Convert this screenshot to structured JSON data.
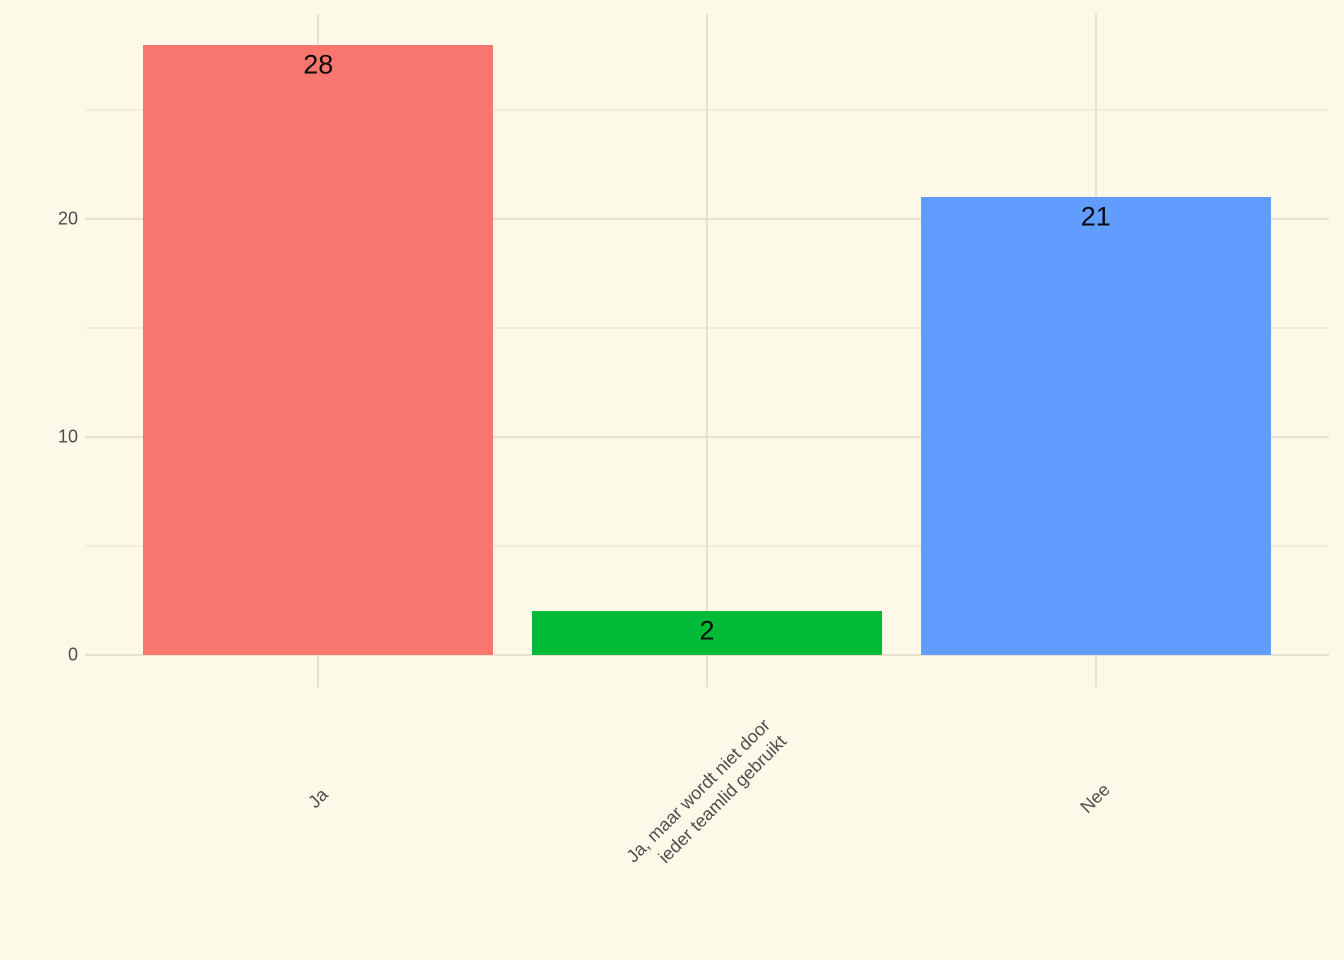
{
  "chart": {
    "background_color": "#FDF9E9",
    "grid_major_color": "#E5E2D4",
    "grid_minor_color": "#F0EDDF",
    "axis_text_color": "#4D4D4D",
    "value_label_color": "#0A0A0A"
  },
  "chart_data": {
    "type": "bar",
    "title": "",
    "xlabel": "",
    "ylabel": "",
    "categories": [
      "Ja",
      "Ja, maar wordt niet door\nieder teamlid gebruikt",
      "Nee"
    ],
    "values": [
      28,
      2,
      21
    ],
    "value_labels": [
      "28",
      "2",
      "21"
    ],
    "bar_colors": [
      "#F8766D",
      "#00BA38",
      "#619CFF"
    ],
    "ylim": [
      0,
      29.4
    ],
    "yticks": [
      0,
      10,
      20
    ],
    "ytick_labels": [
      "0",
      "10",
      "20"
    ],
    "yticks_minor": [
      5,
      15,
      25
    ],
    "grid": "on",
    "legend": "none",
    "x_label_rotation_deg": 45
  }
}
